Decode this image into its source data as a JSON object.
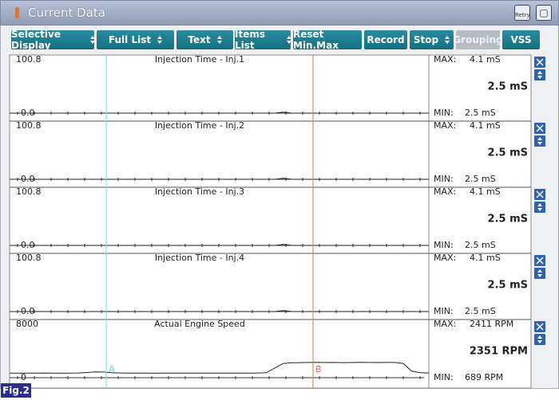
{
  "header": {
    "title": "Current Data",
    "retry": "Retry"
  },
  "toolbar": [
    "Selective Display",
    "Full List",
    "Text",
    "Items List",
    "Reset Min.Max",
    "Record",
    "Stop",
    "Grouping",
    "VSS"
  ],
  "max_label": "MAX:",
  "min_label": "MIN:",
  "cursors": [
    "A",
    "B"
  ],
  "panels": [
    {
      "name": "Injection Time - Inj.1",
      "top": "100.8",
      "bottom": "0.0",
      "scale": [
        0,
        100.8
      ],
      "max": "4.1 mS",
      "current": "2.5 mS",
      "min": "2.5 mS",
      "trace": [
        0,
        0,
        0,
        0,
        0,
        0,
        0,
        0,
        0,
        0,
        0,
        0,
        0,
        0,
        0,
        0,
        0,
        0,
        0,
        0,
        0,
        0,
        0,
        0,
        0,
        0,
        0,
        0,
        0,
        0,
        0,
        0,
        2,
        0,
        0,
        0,
        0,
        0,
        0,
        0,
        0,
        0,
        0,
        0,
        0,
        0,
        0,
        0,
        0,
        0
      ]
    },
    {
      "name": "Injection Time - Inj.2",
      "top": "100.8",
      "bottom": "0.0",
      "scale": [
        0,
        100.8
      ],
      "max": "4.1 mS",
      "current": "2.5 mS",
      "min": "2.5 mS",
      "trace": [
        0,
        0,
        0,
        0,
        0,
        0,
        0,
        0,
        0,
        0,
        0,
        0,
        0,
        0,
        0,
        0,
        0,
        0,
        0,
        0,
        0,
        0,
        0,
        0,
        0,
        0,
        0,
        0,
        0,
        0,
        0,
        0,
        2,
        0,
        0,
        0,
        0,
        0,
        0,
        0,
        0,
        0,
        0,
        0,
        0,
        0,
        0,
        0,
        0,
        0
      ]
    },
    {
      "name": "Injection Time - Inj.3",
      "top": "100.8",
      "bottom": "0.0",
      "scale": [
        0,
        100.8
      ],
      "max": "4.1 mS",
      "current": "2.5 mS",
      "min": "2.5 mS",
      "trace": [
        0,
        0,
        0,
        0,
        0,
        0,
        0,
        0,
        0,
        0,
        0,
        0,
        0,
        0,
        0,
        0,
        0,
        0,
        0,
        0,
        0,
        0,
        0,
        0,
        0,
        0,
        0,
        0,
        0,
        0,
        0,
        0,
        2,
        0,
        0,
        0,
        0,
        0,
        0,
        0,
        0,
        0,
        0,
        0,
        0,
        0,
        0,
        0,
        0,
        0
      ]
    },
    {
      "name": "Injection Time - Inj.4",
      "top": "100.8",
      "bottom": "0.0",
      "scale": [
        0,
        100.8
      ],
      "max": "4.1 mS",
      "current": "2.5 mS",
      "min": "2.5 mS",
      "trace": [
        0,
        0,
        0,
        0,
        0,
        0,
        0,
        0,
        0,
        0,
        0,
        0,
        0,
        0,
        0,
        0,
        0,
        0,
        0,
        0,
        0,
        0,
        0,
        0,
        0,
        0,
        0,
        0,
        0,
        0,
        0,
        0,
        2,
        0,
        0,
        0,
        0,
        0,
        0,
        0,
        0,
        0,
        0,
        0,
        0,
        0,
        0,
        0,
        0,
        0
      ]
    },
    {
      "name": "Actual Engine Speed",
      "top": "8000",
      "bottom": "0",
      "scale": [
        0,
        8000
      ],
      "max": "2411 RPM",
      "current": "2351 RPM",
      "min": "689 RPM",
      "trace": [
        700,
        690,
        700,
        710,
        720,
        700,
        690,
        700,
        720,
        800,
        900,
        880,
        750,
        720,
        710,
        700,
        700,
        690,
        700,
        700,
        710,
        700,
        700,
        700,
        700,
        700,
        700,
        700,
        700,
        720,
        760,
        1500,
        2200,
        2300,
        2320,
        2350,
        2360,
        2340,
        2350,
        2330,
        2340,
        2360,
        2350,
        2340,
        2351,
        2350,
        2200,
        1000,
        760,
        720
      ]
    }
  ],
  "figure": "Fig.2"
}
